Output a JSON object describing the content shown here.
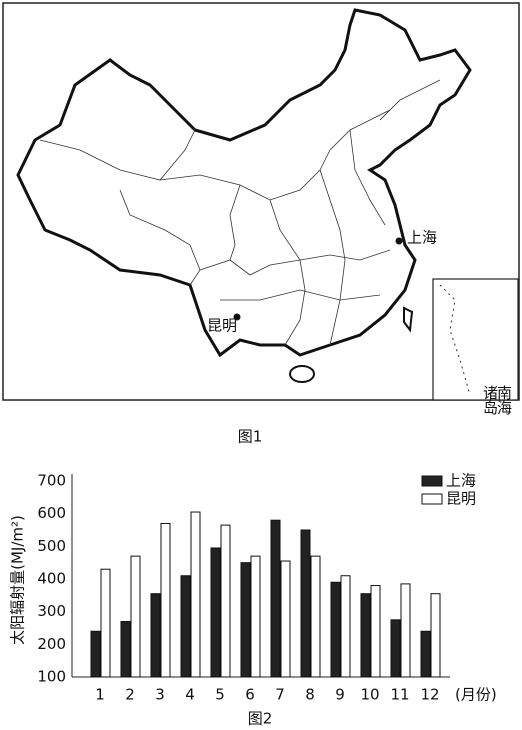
{
  "map": {
    "labels": [
      "上海",
      "昆明"
    ],
    "inset_label": [
      "南海",
      "诸岛"
    ],
    "caption": "图1"
  },
  "chart_data": {
    "type": "bar",
    "caption": "图2",
    "y_label": "太阳辐射量(MJ/m²)",
    "x_label": "(月份)",
    "categories": [
      "1",
      "2",
      "3",
      "4",
      "5",
      "6",
      "7",
      "8",
      "9",
      "10",
      "11",
      "12"
    ],
    "series": [
      {
        "name": "上海",
        "color": "#222222",
        "values": [
          240,
          270,
          355,
          410,
          495,
          450,
          580,
          550,
          390,
          355,
          275,
          240
        ]
      },
      {
        "name": "昆明",
        "color": "#ffffff",
        "values": [
          430,
          470,
          570,
          605,
          565,
          470,
          455,
          470,
          410,
          380,
          385,
          355
        ]
      }
    ],
    "ylim": [
      100,
      700
    ],
    "yticks": [
      100,
      200,
      300,
      400,
      500,
      600,
      700
    ],
    "grid": false,
    "legend": "top-right"
  }
}
